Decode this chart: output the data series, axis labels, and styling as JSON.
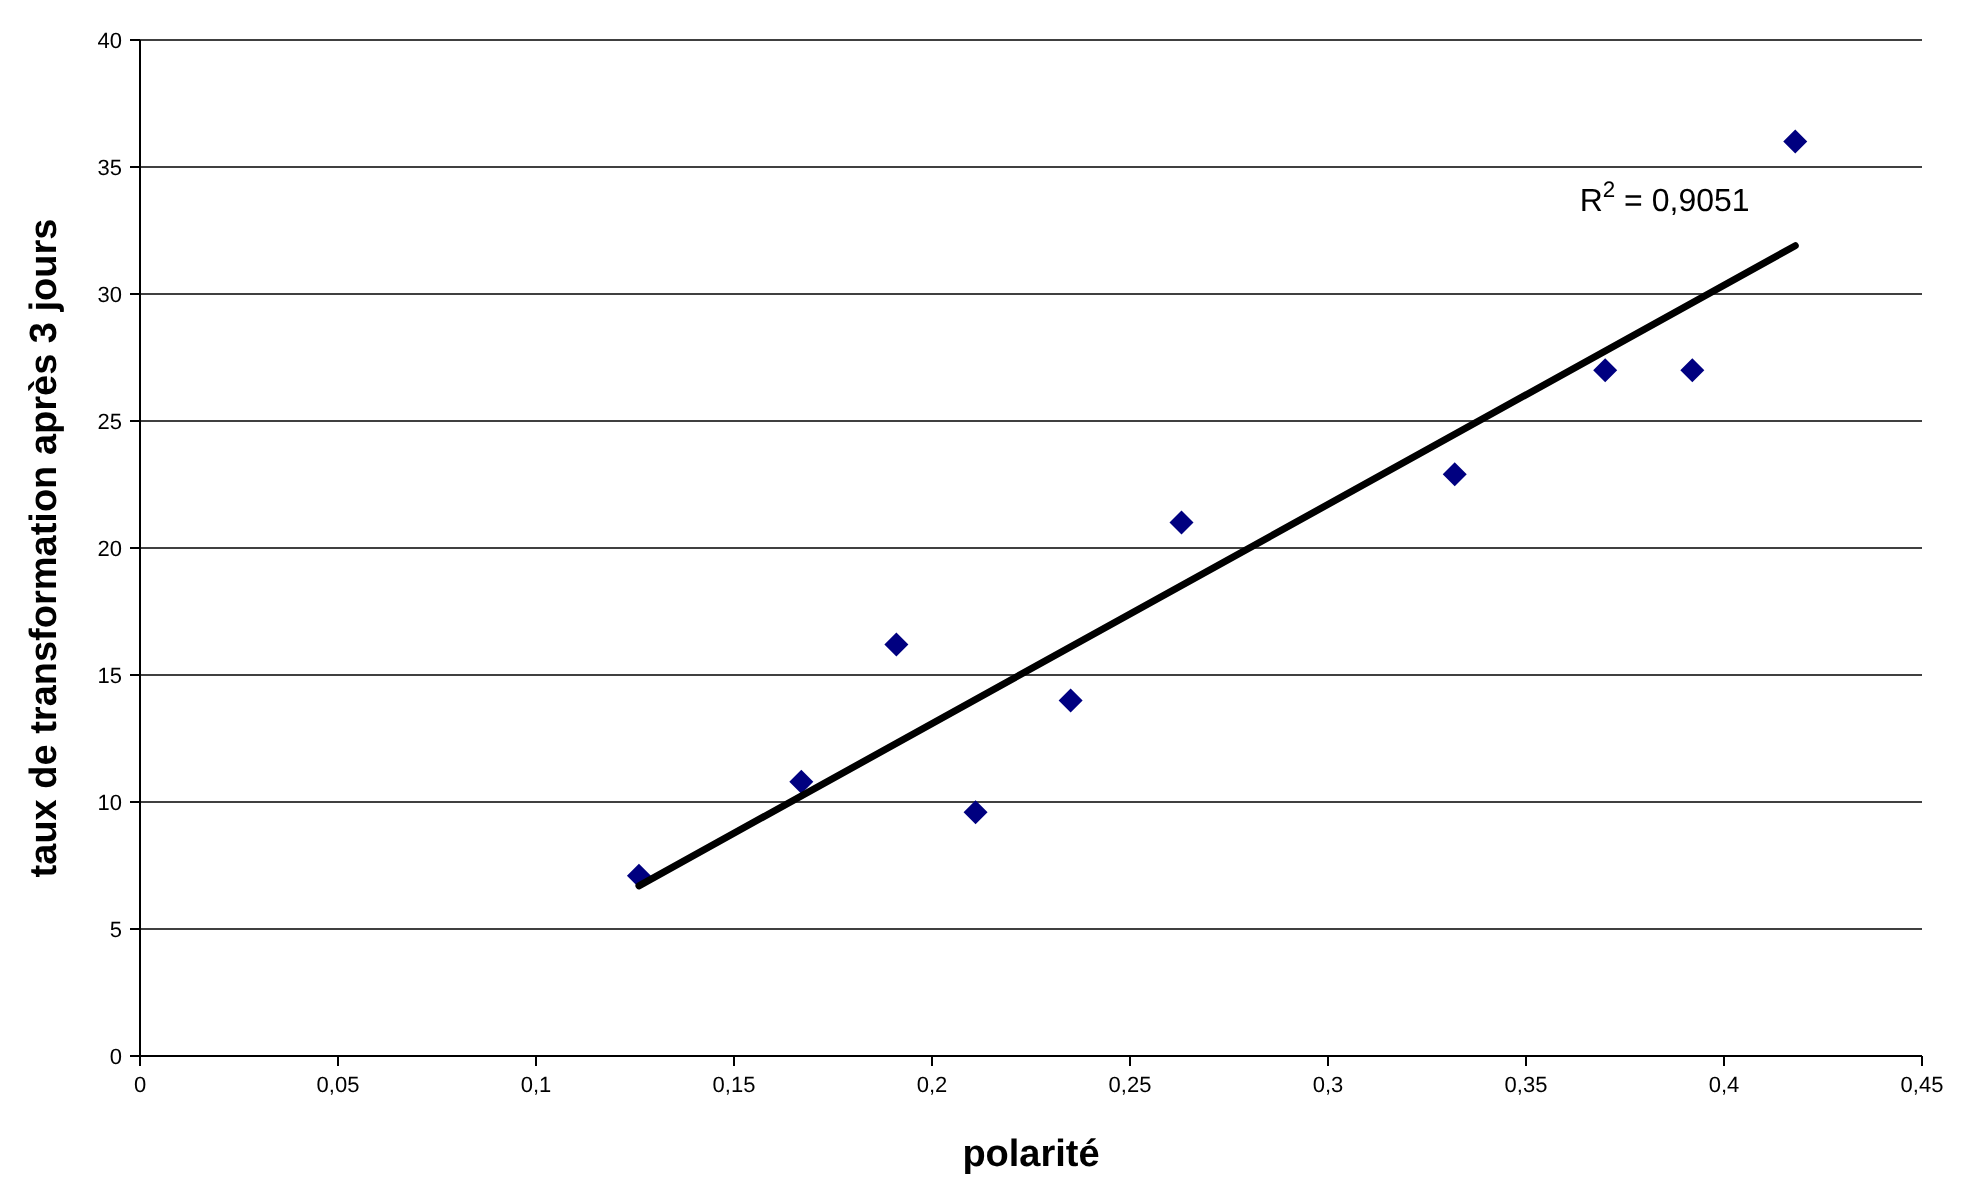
{
  "chart_data": {
    "type": "scatter",
    "xlabel": "polarité",
    "ylabel": "taux de transformation après 3 jours",
    "series": [
      {
        "color": "#000080",
        "marker": "diamond",
        "x": [
          0.126,
          0.167,
          0.191,
          0.211,
          0.235,
          0.263,
          0.332,
          0.37,
          0.392,
          0.418
        ],
        "values": [
          7.1,
          10.8,
          16.2,
          9.6,
          14,
          21,
          22.9,
          27,
          27,
          36
        ]
      },
      {
        "type": "line",
        "color": "#000000",
        "marker": "none",
        "x": [
          0.126,
          0.418
        ],
        "values": [
          6.7,
          31.9
        ]
      }
    ],
    "annotations": [
      "R$^{2}$ = 0,9051"
    ],
    "xlim": [
      0,
      0.45
    ],
    "ylim": [
      0,
      40
    ],
    "xticks": [
      0,
      {
        "value": 0.05,
        "label": "0,05"
      },
      {
        "value": 0.1,
        "label": "0,1"
      },
      {
        "value": 0.15,
        "label": "0,15"
      },
      {
        "value": 0.2,
        "label": "0,2"
      },
      {
        "value": 0.25,
        "label": "0,25"
      },
      {
        "value": 0.3,
        "label": "0,3"
      },
      {
        "value": 0.35,
        "label": "0,35"
      },
      {
        "value": 0.4,
        "label": "0,4"
      },
      {
        "value": 0.45,
        "label": "0,45"
      }
    ],
    "yticks": [
      0,
      5,
      10,
      15,
      20,
      25,
      30,
      35,
      40
    ],
    "grid": "y"
  }
}
